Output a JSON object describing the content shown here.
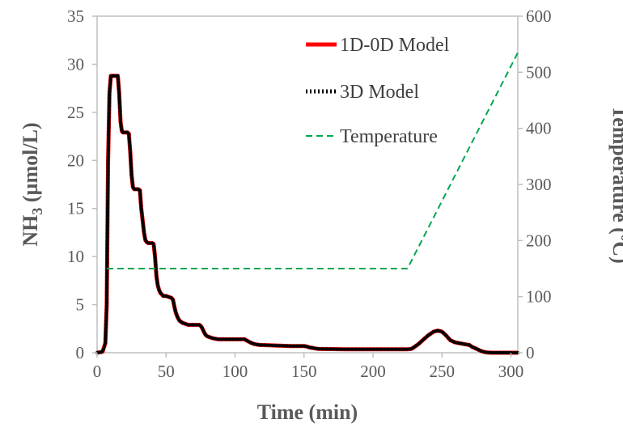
{
  "chart_data": {
    "type": "line",
    "title": "",
    "xlabel": "Time (min)",
    "ylabel": "NH3 (µmol/L)",
    "ylabel_main": "NH",
    "ylabel_sub": "3",
    "ylabel_rest": " (µmol/L)",
    "y2label": "Temperature (ºC)",
    "xlim": [
      0,
      305
    ],
    "ylim": [
      0,
      35
    ],
    "y2lim": [
      0,
      600
    ],
    "x_ticks": [
      0,
      50,
      100,
      150,
      200,
      250,
      300
    ],
    "y_ticks": [
      0,
      5,
      10,
      15,
      20,
      25,
      30,
      35
    ],
    "y2_ticks": [
      0,
      100,
      200,
      300,
      400,
      500,
      600
    ],
    "legend_position": "top-right",
    "grid": false,
    "series": [
      {
        "name": "1D-0D Model",
        "axis": "left",
        "color": "#ff0000",
        "style": "solid",
        "x": [
          0,
          4,
          6,
          7,
          8,
          9,
          10,
          11,
          12,
          15,
          16,
          17,
          18,
          19,
          20,
          22,
          23,
          24,
          25,
          26,
          27,
          30,
          31,
          32,
          34,
          35,
          36,
          37,
          38,
          40,
          41,
          42,
          43,
          44,
          45,
          46,
          48,
          50,
          52,
          54,
          55,
          56,
          57,
          58,
          59,
          60,
          62,
          64,
          66,
          68,
          70,
          74,
          75,
          76,
          77,
          78,
          79,
          80,
          82,
          84,
          86,
          88,
          90,
          100,
          107,
          108,
          110,
          112,
          114,
          116,
          118,
          120,
          130,
          140,
          150,
          152,
          154,
          156,
          158,
          160,
          170,
          180,
          190,
          200,
          210,
          220,
          225,
          228,
          230,
          233,
          236,
          240,
          244,
          247,
          250,
          253,
          256,
          259,
          262,
          266,
          270,
          272,
          275,
          278,
          280,
          283,
          286,
          290,
          295,
          300,
          305
        ],
        "y": [
          0,
          0.1,
          1,
          5,
          20,
          27,
          28.8,
          28.8,
          28.8,
          28.8,
          27,
          24,
          23,
          22.9,
          22.9,
          22.9,
          22.8,
          21,
          18.5,
          17.2,
          17,
          17,
          16.9,
          15,
          12.5,
          11.7,
          11.5,
          11.4,
          11.4,
          11.4,
          11.3,
          10,
          8,
          7,
          6.5,
          6.2,
          5.9,
          5.9,
          5.8,
          5.7,
          5.5,
          4.8,
          4.2,
          3.8,
          3.5,
          3.3,
          3.1,
          3,
          2.9,
          2.9,
          2.9,
          2.9,
          2.8,
          2.6,
          2.3,
          2.0,
          1.8,
          1.7,
          1.6,
          1.5,
          1.45,
          1.4,
          1.4,
          1.4,
          1.4,
          1.3,
          1.15,
          1.0,
          0.9,
          0.85,
          0.8,
          0.8,
          0.75,
          0.7,
          0.7,
          0.65,
          0.55,
          0.5,
          0.45,
          0.4,
          0.38,
          0.35,
          0.35,
          0.35,
          0.35,
          0.35,
          0.35,
          0.4,
          0.6,
          0.9,
          1.3,
          1.8,
          2.2,
          2.3,
          2.2,
          1.8,
          1.3,
          1.1,
          1.0,
          0.9,
          0.8,
          0.6,
          0.4,
          0.2,
          0.1,
          0.02,
          0,
          0,
          0,
          0,
          0
        ]
      },
      {
        "name": "3D Model",
        "axis": "left",
        "color": "#000000",
        "style": "dotted",
        "x": [
          0,
          4,
          6,
          7,
          8,
          9,
          10,
          11,
          12,
          15,
          16,
          17,
          18,
          19,
          20,
          22,
          23,
          24,
          25,
          26,
          27,
          30,
          31,
          32,
          34,
          35,
          36,
          37,
          38,
          40,
          41,
          42,
          43,
          44,
          45,
          46,
          48,
          50,
          52,
          54,
          55,
          56,
          57,
          58,
          59,
          60,
          62,
          64,
          66,
          68,
          70,
          74,
          75,
          76,
          77,
          78,
          79,
          80,
          82,
          84,
          86,
          88,
          90,
          100,
          107,
          108,
          110,
          112,
          114,
          116,
          118,
          120,
          130,
          140,
          150,
          152,
          154,
          156,
          158,
          160,
          170,
          180,
          190,
          200,
          210,
          220,
          225,
          228,
          230,
          233,
          236,
          240,
          244,
          247,
          250,
          253,
          256,
          259,
          262,
          266,
          270,
          272,
          275,
          278,
          280,
          283,
          286,
          290,
          295,
          300,
          305
        ],
        "y": [
          0,
          0.1,
          1,
          5,
          20,
          27,
          28.8,
          28.8,
          28.8,
          28.8,
          27,
          24,
          23,
          22.9,
          22.9,
          22.9,
          22.8,
          21,
          18.5,
          17.2,
          17,
          17,
          16.9,
          15,
          12.5,
          11.7,
          11.5,
          11.4,
          11.4,
          11.4,
          11.3,
          10,
          8,
          7,
          6.5,
          6.2,
          5.9,
          5.9,
          5.8,
          5.7,
          5.5,
          4.8,
          4.2,
          3.8,
          3.5,
          3.3,
          3.1,
          3,
          2.9,
          2.9,
          2.9,
          2.9,
          2.8,
          2.6,
          2.3,
          2.0,
          1.8,
          1.7,
          1.6,
          1.5,
          1.45,
          1.4,
          1.4,
          1.4,
          1.4,
          1.3,
          1.15,
          1.0,
          0.9,
          0.85,
          0.8,
          0.8,
          0.75,
          0.7,
          0.7,
          0.65,
          0.55,
          0.5,
          0.45,
          0.4,
          0.38,
          0.35,
          0.35,
          0.35,
          0.35,
          0.35,
          0.35,
          0.4,
          0.6,
          0.9,
          1.3,
          1.8,
          2.2,
          2.3,
          2.2,
          1.8,
          1.3,
          1.1,
          1.0,
          0.9,
          0.8,
          0.6,
          0.4,
          0.2,
          0.1,
          0.02,
          0,
          0,
          0,
          0,
          0
        ]
      },
      {
        "name": "Temperature",
        "axis": "right",
        "color": "#00a550",
        "style": "dashed",
        "x": [
          7,
          225,
          305
        ],
        "y": [
          150,
          150,
          535
        ]
      }
    ]
  }
}
